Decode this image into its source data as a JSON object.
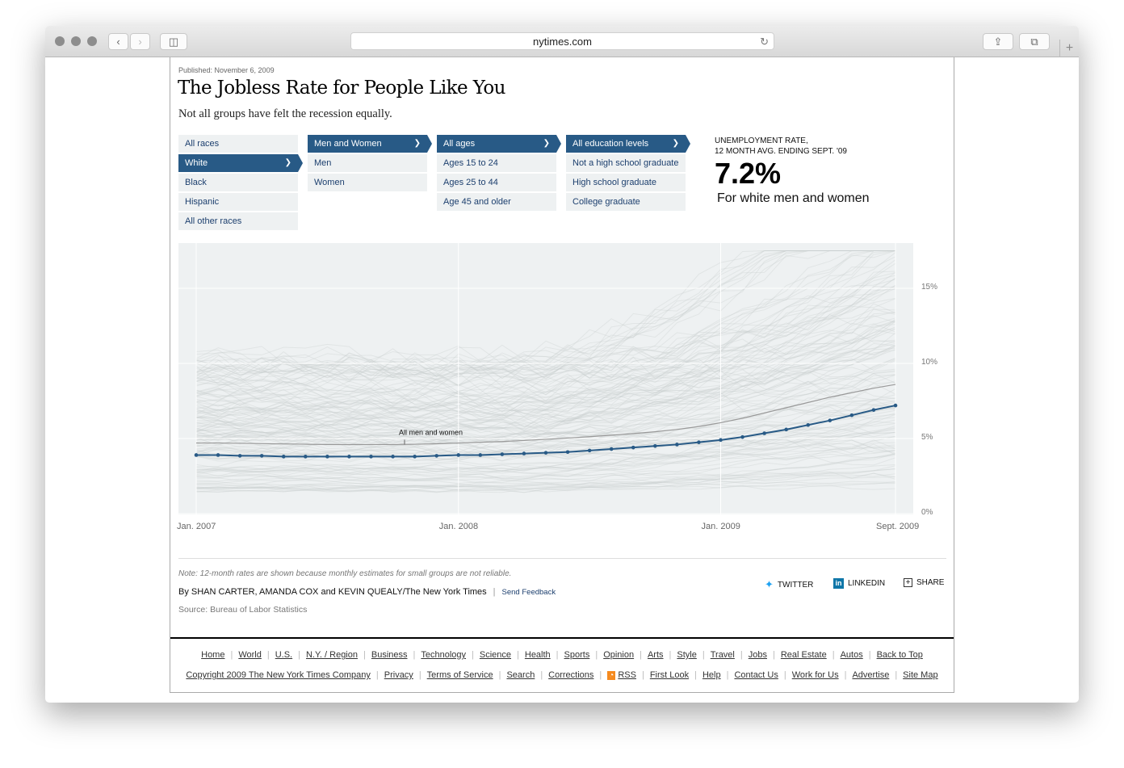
{
  "browser": {
    "url": "nytimes.com"
  },
  "article": {
    "published": "Published: November 6, 2009",
    "title": "The Jobless Rate for People Like You",
    "subtitle": "Not all groups have felt the recession equally."
  },
  "filters": {
    "race": [
      {
        "label": "All races",
        "selected": false
      },
      {
        "label": "White",
        "selected": true
      },
      {
        "label": "Black",
        "selected": false
      },
      {
        "label": "Hispanic",
        "selected": false
      },
      {
        "label": "All other races",
        "selected": false
      }
    ],
    "sex": [
      {
        "label": "Men and Women",
        "selected": true
      },
      {
        "label": "Men",
        "selected": false
      },
      {
        "label": "Women",
        "selected": false
      }
    ],
    "age": [
      {
        "label": "All ages",
        "selected": true
      },
      {
        "label": "Ages 15 to 24",
        "selected": false
      },
      {
        "label": "Ages 25 to 44",
        "selected": false
      },
      {
        "label": "Age 45 and older",
        "selected": false
      }
    ],
    "education": [
      {
        "label": "All education levels",
        "selected": true
      },
      {
        "label": "Not a high school graduate",
        "selected": false
      },
      {
        "label": "High school graduate",
        "selected": false
      },
      {
        "label": "College graduate",
        "selected": false
      }
    ]
  },
  "summary": {
    "label_line1": "UNEMPLOYMENT RATE,",
    "label_line2": "12 MONTH AVG. ENDING SEPT. '09",
    "value": "7.2%",
    "description": "For white men and women"
  },
  "chart_data": {
    "type": "line",
    "x_start": "2007-01",
    "x_end": "2009-09",
    "x_ticks": [
      "Jan. 2007",
      "Jan. 2008",
      "Jan. 2009",
      "Sept. 2009"
    ],
    "y_ticks": [
      "0%",
      "5%",
      "10%",
      "15%"
    ],
    "ylim": [
      0,
      18
    ],
    "grid": true,
    "series": [
      {
        "name": "",
        "color": "#285a86",
        "values": [
          3.9,
          3.9,
          3.85,
          3.85,
          3.8,
          3.8,
          3.8,
          3.8,
          3.8,
          3.8,
          3.8,
          3.85,
          3.9,
          3.9,
          3.95,
          4.0,
          4.05,
          4.1,
          4.2,
          4.3,
          4.4,
          4.5,
          4.6,
          4.75,
          4.9,
          5.1,
          5.35,
          5.6,
          5.9,
          6.2,
          6.55,
          6.9,
          7.2
        ]
      },
      {
        "name": "All men and women",
        "color": "#999999",
        "values": [
          4.7,
          4.7,
          4.68,
          4.66,
          4.64,
          4.62,
          4.6,
          4.6,
          4.6,
          4.6,
          4.62,
          4.65,
          4.7,
          4.75,
          4.8,
          4.87,
          4.95,
          5.03,
          5.12,
          5.22,
          5.33,
          5.45,
          5.6,
          5.8,
          6.05,
          6.35,
          6.7,
          7.05,
          7.4,
          7.75,
          8.05,
          8.35,
          8.6
        ]
      }
    ]
  },
  "credits": {
    "note": "Note: 12-month rates are shown because monthly estimates for small groups are not reliable.",
    "byline": "By SHAN CARTER, AMANDA COX and KEVIN QUEALY/The New York Times",
    "feedback": "Send Feedback",
    "source": "Source: Bureau of Labor Statistics"
  },
  "share": {
    "twitter": "TWITTER",
    "linkedin": "LINKEDIN",
    "share": "SHARE",
    "twitter_color": "#1da1f2",
    "linkedin_color": "#0e76a8"
  },
  "footer": {
    "nav": [
      "Home",
      "World",
      "U.S.",
      "N.Y. / Region",
      "Business",
      "Technology",
      "Science",
      "Health",
      "Sports",
      "Opinion",
      "Arts",
      "Style",
      "Travel",
      "Jobs",
      "Real Estate",
      "Autos",
      "Back to Top"
    ],
    "legal": [
      "Copyright 2009 The New York Times Company",
      "Privacy",
      "Terms of Service",
      "Search",
      "Corrections",
      "RSS",
      "First Look",
      "Help",
      "Contact Us",
      "Work for Us",
      "Advertise",
      "Site Map"
    ]
  }
}
